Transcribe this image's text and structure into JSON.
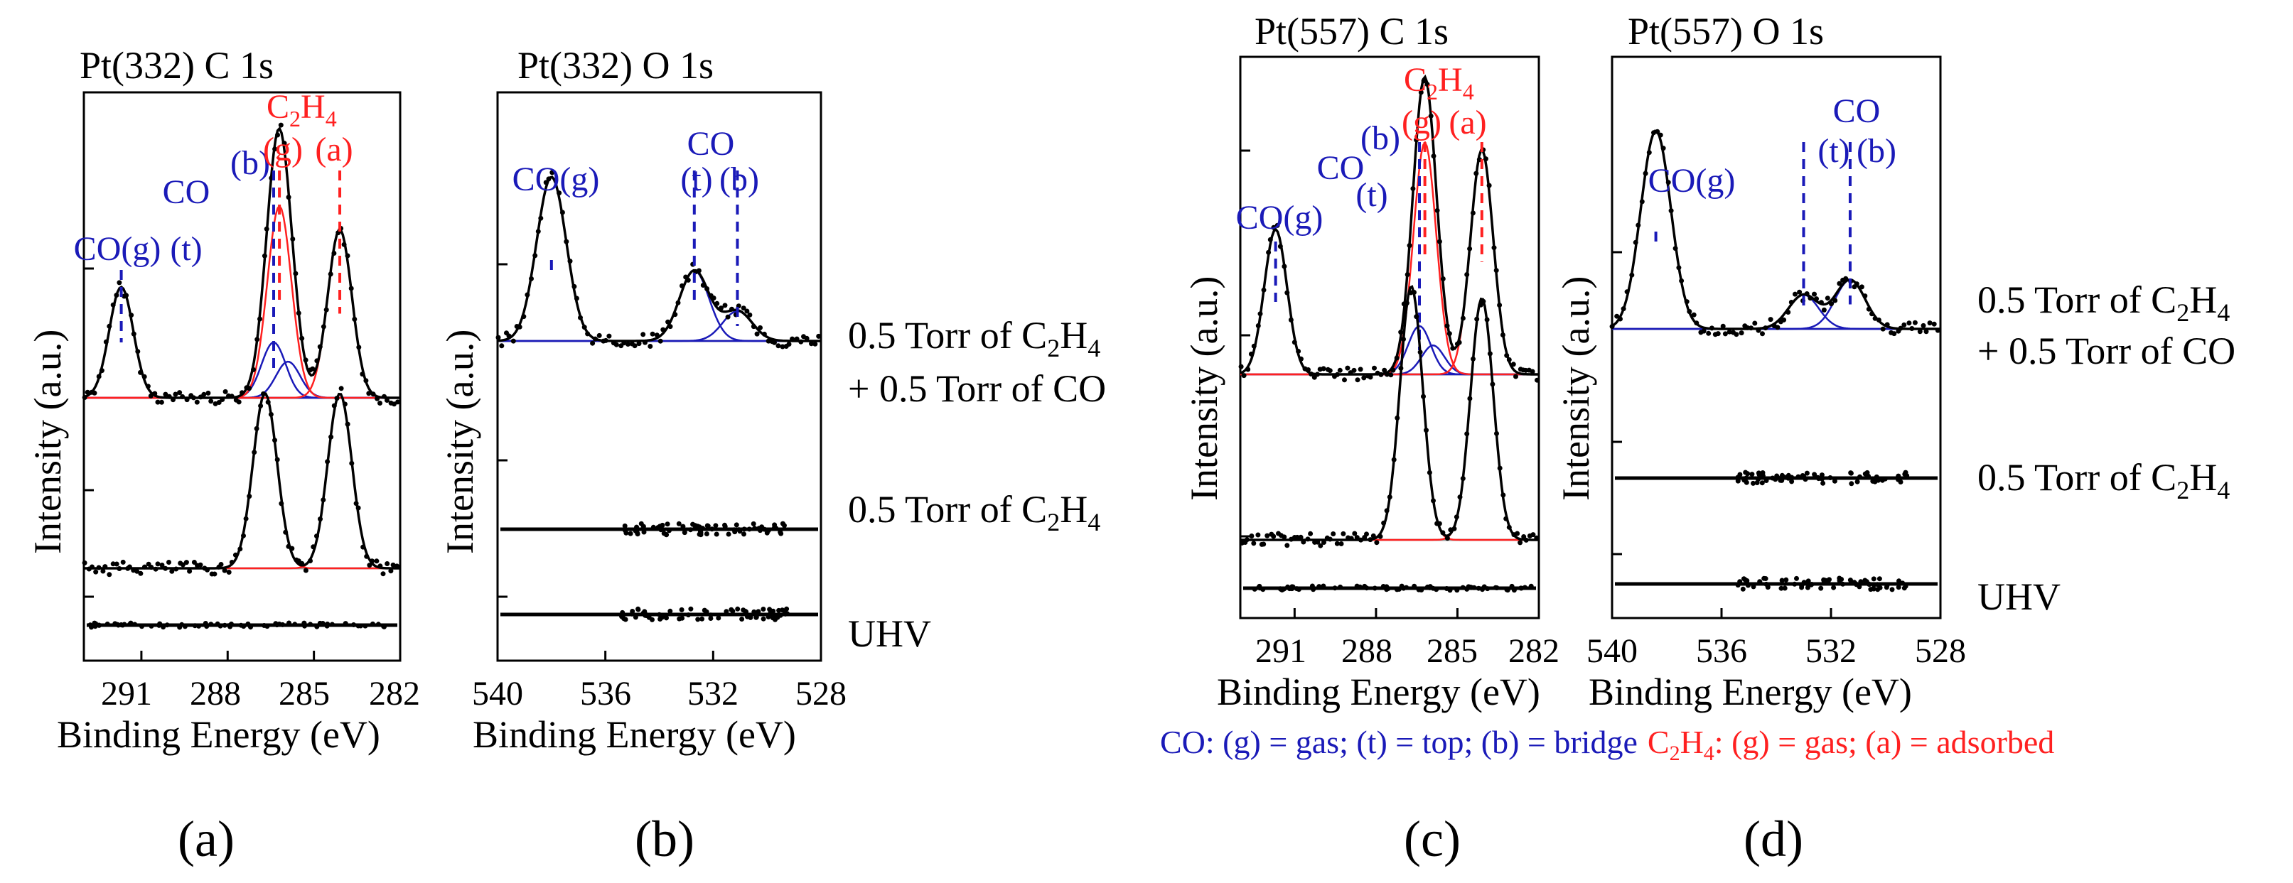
{
  "chart_data": [
    {
      "panel": "(a)",
      "type": "line",
      "title": "Pt(332) C 1s",
      "xlabel": "Binding Energy (eV)",
      "ylabel": "Intensity (a.u.)",
      "xlim": [
        293,
        282
      ],
      "xticks": [
        "291",
        "288",
        "285",
        "282"
      ],
      "series": [
        {
          "name": "0.5 Torr of C2H4 + 0.5 Torr of CO",
          "peaks": [
            {
              "label": "CO(g)",
              "species": "CO",
              "center": 291.7,
              "height": 0.52
            },
            {
              "label": "(t)",
              "species": "CO",
              "center": 286.4,
              "height": 0.26
            },
            {
              "label": "(b)",
              "species": "CO",
              "center": 285.9,
              "height": 0.17
            },
            {
              "label": "(g)",
              "species": "C2H4",
              "center": 286.2,
              "height": 0.9
            },
            {
              "label": "(a)",
              "species": "C2H4",
              "center": 284.1,
              "height": 0.79
            }
          ]
        },
        {
          "name": "0.5 Torr of C2H4",
          "peaks": [
            {
              "label": "(g)",
              "species": "C2H4",
              "center": 286.7,
              "height": 0.82
            },
            {
              "label": "(a)",
              "species": "C2H4",
              "center": 284.1,
              "height": 0.82
            }
          ]
        },
        {
          "name": "UHV",
          "peaks": []
        }
      ]
    },
    {
      "panel": "(b)",
      "type": "line",
      "title": "Pt(332) O 1s",
      "xlabel": "Binding Energy (eV)",
      "ylabel": "Intensity (a.u.)",
      "xlim": [
        540,
        528
      ],
      "xticks": [
        "540",
        "536",
        "532",
        "528"
      ],
      "series": [
        {
          "name": "0.5 Torr of C2H4 + 0.5 Torr of CO",
          "peaks": [
            {
              "label": "CO(g)",
              "species": "CO",
              "center": 538.0,
              "height": 0.77
            },
            {
              "label": "(t)",
              "species": "CO",
              "center": 532.7,
              "height": 0.33
            },
            {
              "label": "(b)",
              "species": "CO",
              "center": 531.1,
              "height": 0.14
            }
          ]
        },
        {
          "name": "0.5 Torr of C2H4",
          "peaks": []
        },
        {
          "name": "UHV",
          "peaks": []
        }
      ]
    },
    {
      "panel": "(c)",
      "type": "line",
      "title": "Pt(557) C 1s",
      "xlabel": "Binding Energy (eV)",
      "ylabel": "Intensity (a.u.)",
      "xlim": [
        293,
        282
      ],
      "xticks": [
        "291",
        "288",
        "285",
        "282"
      ],
      "series": [
        {
          "name": "0.5 Torr of C2H4 + 0.5 Torr of CO",
          "peaks": [
            {
              "label": "CO(g)",
              "species": "CO",
              "center": 291.7,
              "height": 0.6
            },
            {
              "label": "(t)",
              "species": "CO",
              "center": 286.4,
              "height": 0.2
            },
            {
              "label": "(b)",
              "species": "CO",
              "center": 285.9,
              "height": 0.12
            },
            {
              "label": "(g)",
              "species": "C2H4",
              "center": 286.2,
              "height": 0.96
            },
            {
              "label": "(a)",
              "species": "C2H4",
              "center": 284.1,
              "height": 0.93
            }
          ]
        },
        {
          "name": "0.5 Torr of C2H4",
          "peaks": [
            {
              "label": "(g)",
              "species": "C2H4",
              "center": 286.7,
              "height": 1.05
            },
            {
              "label": "(a)",
              "species": "C2H4",
              "center": 284.1,
              "height": 1.0
            }
          ]
        },
        {
          "name": "UHV",
          "peaks": []
        }
      ]
    },
    {
      "panel": "(d)",
      "type": "line",
      "title": "Pt(557) O 1s",
      "xlabel": "Binding Energy (eV)",
      "ylabel": "Intensity (a.u.)",
      "xlim": [
        540,
        528
      ],
      "xticks": [
        "540",
        "536",
        "532",
        "528"
      ],
      "series": [
        {
          "name": "0.5 Torr of C2H4 + 0.5 Torr of CO",
          "peaks": [
            {
              "label": "CO(g)",
              "species": "CO",
              "center": 538.4,
              "height": 0.93
            },
            {
              "label": "(t)",
              "species": "CO",
              "center": 533.0,
              "height": 0.16
            },
            {
              "label": "(b)",
              "species": "CO",
              "center": 531.3,
              "height": 0.23
            }
          ]
        },
        {
          "name": "0.5 Torr of C2H4",
          "peaks": []
        },
        {
          "name": "UHV",
          "peaks": []
        }
      ]
    }
  ],
  "conditions_ab": [
    "0.5 Torr of C",
    "2",
    "H",
    "4",
    "+ 0.5 Torr of CO",
    "0.5 Torr of C",
    "2",
    "H",
    "4",
    "UHV"
  ],
  "conditions_cd": [
    "0.5 Torr of C",
    "2",
    "H",
    "4",
    "+ 0.5 Torr of CO",
    "0.5 Torr of C",
    "2",
    "H",
    "4",
    "UHV"
  ],
  "annotations": {
    "co_g": "CO(g)",
    "co": "CO",
    "t": "(t)",
    "b": "(b)",
    "c2h4_c": "C",
    "c2h4_2": "2",
    "c2h4_h": "H",
    "c2h4_4": "4",
    "g": "(g)",
    "a": "(a)"
  },
  "legend": {
    "co_part": "CO: (g) = gas; (t) = top; (b) = bridge",
    "c_part": "C",
    "sub2": "2",
    "h_part": "H",
    "sub4": "4",
    "rest": ": (g) = gas; (a) = adsorbed"
  },
  "colors": {
    "co": "#1a1ab8",
    "c2h4": "#ff2020",
    "data": "#000000",
    "baseline": "#a0a0a0"
  }
}
